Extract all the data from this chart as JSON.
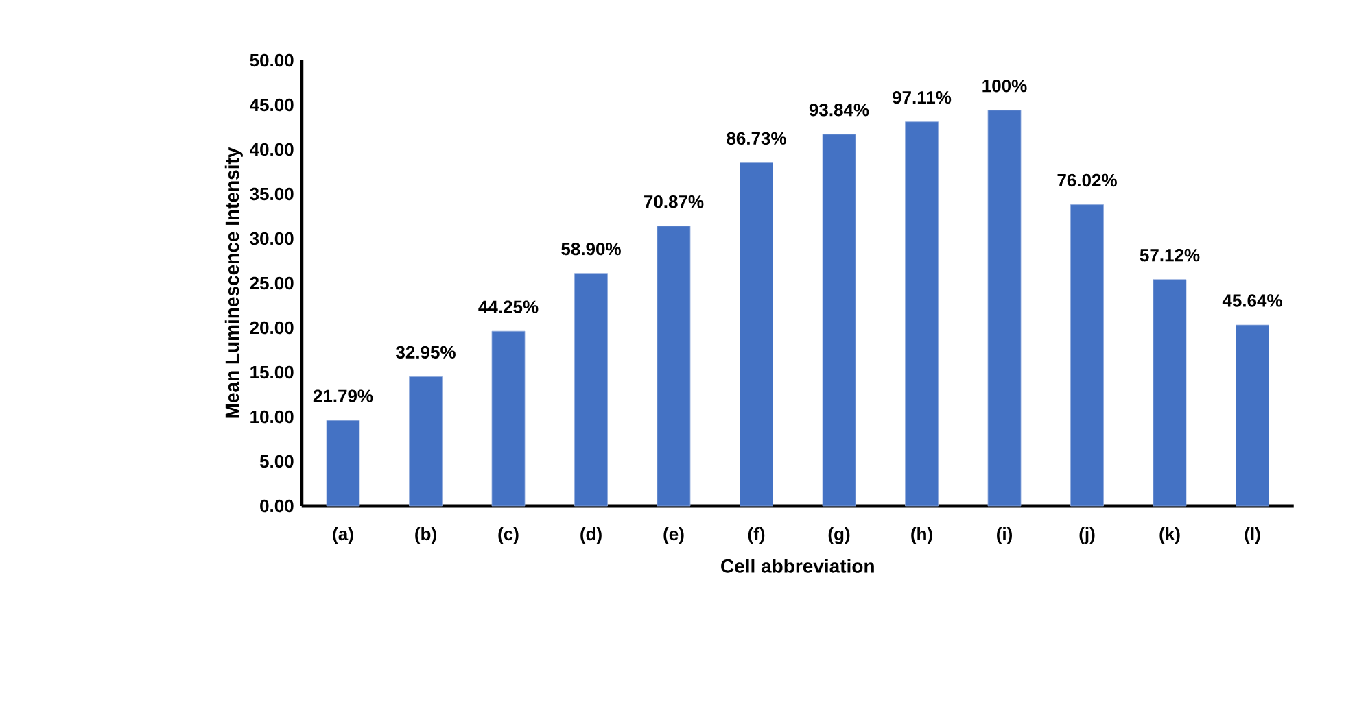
{
  "chart_data": {
    "type": "bar",
    "xlabel": "Cell abbreviation",
    "ylabel": "Mean Luminescence Intensity",
    "categories": [
      "(a)",
      "(b)",
      "(c)",
      "(d)",
      "(e)",
      "(f)",
      "(g)",
      "(h)",
      "(i)",
      "(j)",
      "(k)",
      "(l)"
    ],
    "values": [
      9.6,
      14.5,
      19.6,
      26.1,
      31.4,
      38.5,
      41.7,
      43.1,
      44.4,
      33.8,
      25.4,
      20.3
    ],
    "annotations": [
      {
        "text": "21.79%",
        "x": "(a)",
        "y": 9.6
      },
      {
        "text": "32.95%",
        "x": "(b)",
        "y": 14.5
      },
      {
        "text": "44.25%",
        "x": "(c)",
        "y": 19.6
      },
      {
        "text": "58.90%",
        "x": "(d)",
        "y": 26.1
      },
      {
        "text": "70.87%",
        "x": "(e)",
        "y": 31.4
      },
      {
        "text": "86.73%",
        "x": "(f)",
        "y": 38.5
      },
      {
        "text": "93.84%",
        "x": "(g)",
        "y": 41.7
      },
      {
        "text": "97.11%",
        "x": "(h)",
        "y": 43.1
      },
      {
        "text": "100%",
        "x": "(i)",
        "y": 44.4
      },
      {
        "text": "76.02%",
        "x": "(j)",
        "y": 33.8
      },
      {
        "text": "57.12%",
        "x": "(k)",
        "y": 25.4
      },
      {
        "text": "45.64%",
        "x": "(l)",
        "y": 20.3
      }
    ],
    "color": "#4472c4",
    "ylim": [
      0,
      50
    ],
    "yticks": [
      {
        "value": 0,
        "label": "0.00"
      },
      {
        "value": 5,
        "label": "5.00"
      },
      {
        "value": 10,
        "label": "10.00"
      },
      {
        "value": 15,
        "label": "15.00"
      },
      {
        "value": 20,
        "label": "20.00"
      },
      {
        "value": 25,
        "label": "25.00"
      },
      {
        "value": 30,
        "label": "30.00"
      },
      {
        "value": 35,
        "label": "35.00"
      },
      {
        "value": 40,
        "label": "40.00"
      },
      {
        "value": 45,
        "label": "45.00"
      },
      {
        "value": 50,
        "label": "50.00"
      }
    ],
    "grid": false
  }
}
